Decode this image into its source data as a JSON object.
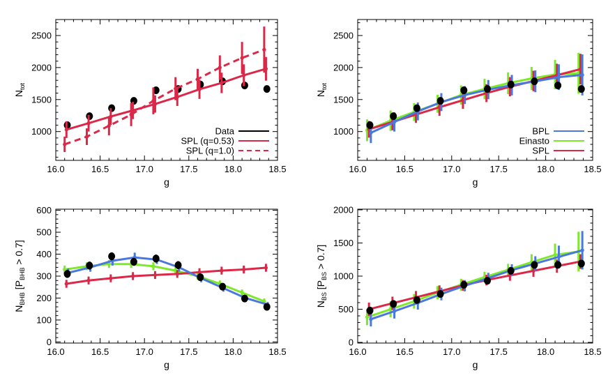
{
  "colors": {
    "data": "#000000",
    "spl": "#dc2848",
    "bpl": "#4a78dc",
    "einasto": "#7ee82a"
  },
  "chart_data": [
    {
      "type": "scatter",
      "xlabel": "g",
      "ylabel": "N",
      "ylabel_sub": "tot",
      "ylabel_suffix": "",
      "xlim": [
        16.0,
        18.5
      ],
      "ylim": [
        550,
        2750
      ],
      "xticks": [
        "16.0",
        "16.5",
        "17.0",
        "17.5",
        "18.0",
        "18.5"
      ],
      "yticks": [
        "1000",
        "1500",
        "2000",
        "2500"
      ],
      "legend": [
        {
          "label": "Data",
          "color": "data",
          "dash": false
        },
        {
          "label": "SPL (q=0.53)",
          "color": "spl",
          "dash": false
        },
        {
          "label": "SPL (q=1.0)",
          "color": "spl",
          "dash": true
        }
      ],
      "series": [
        {
          "key": "data",
          "color": "data",
          "kind": "points",
          "x": [
            16.13,
            16.38,
            16.63,
            16.88,
            17.13,
            17.38,
            17.63,
            17.88,
            18.13,
            18.38
          ],
          "y": [
            1100,
            1240,
            1365,
            1480,
            1645,
            1665,
            1735,
            1785,
            1720,
            1665
          ],
          "err": [
            40,
            40,
            40,
            40,
            40,
            40,
            40,
            40,
            40,
            40
          ]
        },
        {
          "key": "spl_q053",
          "color": "spl",
          "kind": "line_err",
          "dash": false,
          "x": [
            16.12,
            16.37,
            16.62,
            16.87,
            17.12,
            17.37,
            17.62,
            17.87,
            18.12,
            18.37
          ],
          "y": [
            1030,
            1130,
            1235,
            1330,
            1430,
            1540,
            1660,
            1760,
            1880,
            1980
          ],
          "err": [
            130,
            130,
            130,
            135,
            135,
            140,
            150,
            160,
            170,
            185
          ]
        },
        {
          "key": "spl_q10",
          "color": "spl",
          "kind": "line_err",
          "dash": true,
          "x": [
            16.1,
            16.35,
            16.6,
            16.85,
            17.1,
            17.35,
            17.6,
            17.85,
            18.1,
            18.35
          ],
          "y": [
            800,
            920,
            1090,
            1265,
            1480,
            1670,
            1820,
            2000,
            2150,
            2280
          ],
          "err": [
            120,
            130,
            150,
            180,
            210,
            180,
            160,
            190,
            250,
            360
          ]
        }
      ]
    },
    {
      "type": "scatter",
      "xlabel": "g",
      "ylabel": "N",
      "ylabel_sub": "tot",
      "ylabel_suffix": "",
      "xlim": [
        16.0,
        18.5
      ],
      "ylim": [
        550,
        2750
      ],
      "xticks": [
        "16.0",
        "16.5",
        "17.0",
        "17.5",
        "18.0",
        "18.5"
      ],
      "yticks": [
        "1000",
        "1500",
        "2000",
        "2500"
      ],
      "legend": [
        {
          "label": "BPL",
          "color": "bpl",
          "dash": false
        },
        {
          "label": "Einasto",
          "color": "einasto",
          "dash": false
        },
        {
          "label": "SPL",
          "color": "spl",
          "dash": false
        }
      ],
      "series": [
        {
          "key": "einasto",
          "color": "einasto",
          "kind": "line_err",
          "dash": false,
          "x": [
            16.1,
            16.35,
            16.6,
            16.85,
            17.1,
            17.35,
            17.6,
            17.85,
            18.1,
            18.35
          ],
          "y": [
            1020,
            1170,
            1305,
            1435,
            1570,
            1665,
            1755,
            1830,
            1890,
            1910
          ],
          "err": [
            170,
            160,
            140,
            140,
            150,
            160,
            170,
            180,
            230,
            320
          ]
        },
        {
          "key": "spl",
          "color": "spl",
          "kind": "line_err",
          "dash": false,
          "x": [
            16.12,
            16.37,
            16.62,
            16.87,
            17.12,
            17.37,
            17.62,
            17.87,
            18.12,
            18.37
          ],
          "y": [
            1035,
            1150,
            1265,
            1380,
            1490,
            1600,
            1700,
            1790,
            1880,
            1975
          ],
          "err": [
            130,
            130,
            130,
            135,
            135,
            140,
            150,
            160,
            180,
            240
          ]
        },
        {
          "key": "bpl",
          "color": "bpl",
          "kind": "line_err",
          "dash": false,
          "x": [
            16.14,
            16.39,
            16.64,
            16.89,
            17.14,
            17.39,
            17.64,
            17.89,
            18.14,
            18.39
          ],
          "y": [
            980,
            1150,
            1315,
            1460,
            1570,
            1655,
            1725,
            1785,
            1850,
            1885
          ],
          "err": [
            160,
            150,
            140,
            140,
            140,
            150,
            160,
            170,
            200,
            320
          ]
        },
        {
          "key": "data",
          "color": "data",
          "kind": "points",
          "x": [
            16.13,
            16.38,
            16.63,
            16.88,
            17.13,
            17.38,
            17.63,
            17.88,
            18.13,
            18.38
          ],
          "y": [
            1100,
            1240,
            1365,
            1480,
            1645,
            1665,
            1735,
            1785,
            1720,
            1665
          ],
          "err": [
            40,
            40,
            40,
            40,
            40,
            40,
            40,
            40,
            40,
            40
          ]
        }
      ]
    },
    {
      "type": "scatter",
      "xlabel": "g",
      "ylabel": "N",
      "ylabel_sub": "BHB",
      "ylabel_suffix": " [P",
      "ylabel_sub2": "BHB",
      "ylabel_end": " > 0.7]",
      "xlim": [
        16.0,
        18.5
      ],
      "ylim": [
        -5,
        605
      ],
      "xticks": [
        "16.0",
        "16.5",
        "17.0",
        "17.5",
        "18.0",
        "18.5"
      ],
      "yticks": [
        "0",
        "100",
        "200",
        "300",
        "400",
        "500",
        "600"
      ],
      "legend": [],
      "series": [
        {
          "key": "einasto",
          "color": "einasto",
          "kind": "line_err",
          "dash": false,
          "x": [
            16.1,
            16.35,
            16.6,
            16.85,
            17.1,
            17.35,
            17.6,
            17.85,
            18.1,
            18.35
          ],
          "y": [
            330,
            345,
            355,
            355,
            345,
            325,
            300,
            265,
            225,
            185
          ],
          "err": [
            18,
            18,
            18,
            18,
            18,
            18,
            16,
            15,
            14,
            13
          ]
        },
        {
          "key": "spl",
          "color": "spl",
          "kind": "line_err",
          "dash": false,
          "x": [
            16.12,
            16.37,
            16.62,
            16.87,
            17.12,
            17.37,
            17.62,
            17.87,
            18.12,
            18.37
          ],
          "y": [
            265,
            280,
            290,
            300,
            305,
            310,
            318,
            325,
            330,
            338
          ],
          "err": [
            18,
            18,
            18,
            18,
            18,
            18,
            18,
            18,
            18,
            18
          ]
        },
        {
          "key": "bpl",
          "color": "bpl",
          "kind": "line_err",
          "dash": false,
          "x": [
            16.14,
            16.39,
            16.64,
            16.89,
            17.14,
            17.39,
            17.64,
            17.89,
            18.14,
            18.39
          ],
          "y": [
            315,
            340,
            370,
            385,
            375,
            340,
            290,
            245,
            200,
            170
          ],
          "err": [
            20,
            20,
            22,
            22,
            20,
            20,
            18,
            16,
            14,
            12
          ]
        },
        {
          "key": "data",
          "color": "data",
          "kind": "points",
          "x": [
            16.13,
            16.38,
            16.63,
            16.88,
            17.13,
            17.38,
            17.63,
            17.88,
            18.13,
            18.38
          ],
          "y": [
            310,
            348,
            390,
            365,
            380,
            350,
            295,
            252,
            198,
            160
          ],
          "err": [
            18,
            18,
            18,
            18,
            18,
            18,
            15,
            14,
            12,
            11
          ]
        }
      ]
    },
    {
      "type": "scatter",
      "xlabel": "g",
      "ylabel": "N",
      "ylabel_sub": "BS",
      "ylabel_suffix": " [P",
      "ylabel_sub2": "BS",
      "ylabel_end": " > 0.7]",
      "xlim": [
        16.0,
        18.5
      ],
      "ylim": [
        -10,
        2010
      ],
      "xticks": [
        "16.0",
        "16.5",
        "17.0",
        "17.5",
        "18.0",
        "18.5"
      ],
      "yticks": [
        "0",
        "500",
        "1000",
        "1500",
        "2000"
      ],
      "legend": [],
      "series": [
        {
          "key": "einasto",
          "color": "einasto",
          "kind": "line_err",
          "dash": false,
          "x": [
            16.1,
            16.35,
            16.6,
            16.85,
            17.1,
            17.35,
            17.6,
            17.85,
            18.1,
            18.35
          ],
          "y": [
            380,
            500,
            620,
            750,
            870,
            985,
            1095,
            1210,
            1320,
            1370
          ],
          "err": [
            120,
            120,
            110,
            100,
            90,
            80,
            90,
            120,
            170,
            300
          ]
        },
        {
          "key": "spl",
          "color": "spl",
          "kind": "line_err",
          "dash": false,
          "x": [
            16.12,
            16.37,
            16.62,
            16.87,
            17.12,
            17.37,
            17.62,
            17.87,
            18.12,
            18.37
          ],
          "y": [
            500,
            590,
            680,
            770,
            860,
            940,
            1010,
            1080,
            1150,
            1220
          ],
          "err": [
            100,
            100,
            95,
            90,
            80,
            80,
            80,
            90,
            100,
            110
          ]
        },
        {
          "key": "bpl",
          "color": "bpl",
          "kind": "line_err",
          "dash": false,
          "x": [
            16.14,
            16.39,
            16.64,
            16.89,
            17.14,
            17.39,
            17.64,
            17.89,
            18.14,
            18.39
          ],
          "y": [
            350,
            470,
            595,
            730,
            855,
            970,
            1090,
            1190,
            1290,
            1390
          ],
          "err": [
            110,
            110,
            100,
            95,
            85,
            80,
            90,
            110,
            170,
            290
          ]
        },
        {
          "key": "data",
          "color": "data",
          "kind": "points",
          "x": [
            16.13,
            16.38,
            16.63,
            16.88,
            17.13,
            17.38,
            17.63,
            17.88,
            18.13,
            18.38
          ],
          "y": [
            480,
            580,
            640,
            730,
            870,
            930,
            1080,
            1170,
            1170,
            1190
          ],
          "err": [
            40,
            40,
            40,
            40,
            40,
            40,
            40,
            40,
            40,
            40
          ]
        }
      ]
    }
  ]
}
